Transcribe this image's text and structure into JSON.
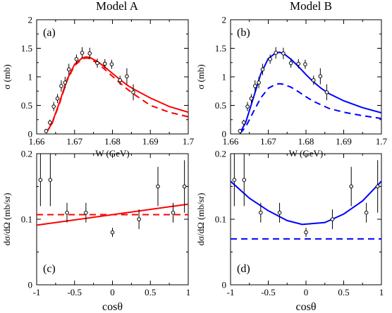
{
  "figure": {
    "column_titles": [
      "Model A",
      "Model B"
    ]
  },
  "chart_data": [
    {
      "type": "line",
      "panel": "(a)",
      "xlabel": "W (GeV)",
      "ylabel": "σ (mb)",
      "xlim": [
        1.66,
        1.7
      ],
      "ylim": [
        0,
        2
      ],
      "xticks": [
        1.66,
        1.67,
        1.68,
        1.69,
        1.7
      ],
      "xtick_labels": [
        "1.66",
        "1.67",
        "1.68",
        "1.69",
        "1.7"
      ],
      "yticks": [
        0,
        0.5,
        1,
        1.5,
        2
      ],
      "ytick_labels": [
        "0",
        "0.5",
        "1",
        "1.5",
        "2"
      ],
      "color": "#ff0000",
      "points": [
        {
          "x": 1.6625,
          "y": 0.05,
          "err": 0.04
        },
        {
          "x": 1.6635,
          "y": 0.2,
          "err": 0.05
        },
        {
          "x": 1.6645,
          "y": 0.48,
          "err": 0.08
        },
        {
          "x": 1.6655,
          "y": 0.62,
          "err": 0.08
        },
        {
          "x": 1.6665,
          "y": 0.84,
          "err": 0.1
        },
        {
          "x": 1.6675,
          "y": 0.9,
          "err": 0.1
        },
        {
          "x": 1.6685,
          "y": 1.13,
          "err": 0.1
        },
        {
          "x": 1.6705,
          "y": 1.31,
          "err": 0.08
        },
        {
          "x": 1.672,
          "y": 1.42,
          "err": 0.1
        },
        {
          "x": 1.674,
          "y": 1.41,
          "err": 0.1
        },
        {
          "x": 1.676,
          "y": 1.24,
          "err": 0.08
        },
        {
          "x": 1.678,
          "y": 1.23,
          "err": 0.08
        },
        {
          "x": 1.6798,
          "y": 1.22,
          "err": 0.08
        },
        {
          "x": 1.682,
          "y": 0.94,
          "err": 0.08
        },
        {
          "x": 1.6838,
          "y": 1.01,
          "err": 0.14
        },
        {
          "x": 1.6855,
          "y": 0.73,
          "err": 0.14
        }
      ],
      "series": [
        {
          "style": "solid",
          "x": [
            1.6625,
            1.664,
            1.666,
            1.668,
            1.67,
            1.672,
            1.673,
            1.674,
            1.676,
            1.678,
            1.68,
            1.682,
            1.684,
            1.686,
            1.69,
            1.695,
            1.7
          ],
          "y": [
            0.02,
            0.18,
            0.55,
            0.95,
            1.22,
            1.33,
            1.35,
            1.34,
            1.27,
            1.17,
            1.06,
            0.95,
            0.85,
            0.77,
            0.63,
            0.48,
            0.38
          ]
        },
        {
          "style": "dashed",
          "x": [
            1.6625,
            1.664,
            1.666,
            1.668,
            1.67,
            1.672,
            1.673,
            1.674,
            1.676,
            1.678,
            1.68,
            1.682,
            1.684,
            1.686,
            1.69,
            1.695,
            1.7
          ],
          "y": [
            0.02,
            0.17,
            0.53,
            0.93,
            1.2,
            1.31,
            1.33,
            1.32,
            1.24,
            1.13,
            1.01,
            0.89,
            0.78,
            0.68,
            0.5,
            0.38,
            0.3
          ]
        }
      ]
    },
    {
      "type": "line",
      "panel": "(b)",
      "xlabel": "W (GeV)",
      "ylabel": "σ (mb)",
      "xlim": [
        1.66,
        1.7
      ],
      "ylim": [
        0,
        2
      ],
      "xticks": [
        1.66,
        1.67,
        1.68,
        1.69,
        1.7
      ],
      "xtick_labels": [
        "1.66",
        "1.67",
        "1.68",
        "1.69",
        "1.7"
      ],
      "yticks": [
        0,
        0.5,
        1,
        1.5,
        2
      ],
      "ytick_labels": [
        "0",
        "0.5",
        "1",
        "1.5",
        "2"
      ],
      "color": "#0000ff",
      "points": [
        {
          "x": 1.6625,
          "y": 0.05,
          "err": 0.04
        },
        {
          "x": 1.6635,
          "y": 0.2,
          "err": 0.05
        },
        {
          "x": 1.6645,
          "y": 0.48,
          "err": 0.08
        },
        {
          "x": 1.6655,
          "y": 0.62,
          "err": 0.08
        },
        {
          "x": 1.6665,
          "y": 0.84,
          "err": 0.1
        },
        {
          "x": 1.6675,
          "y": 0.9,
          "err": 0.1
        },
        {
          "x": 1.6685,
          "y": 1.13,
          "err": 0.1
        },
        {
          "x": 1.6705,
          "y": 1.31,
          "err": 0.08
        },
        {
          "x": 1.672,
          "y": 1.42,
          "err": 0.1
        },
        {
          "x": 1.674,
          "y": 1.41,
          "err": 0.1
        },
        {
          "x": 1.676,
          "y": 1.24,
          "err": 0.08
        },
        {
          "x": 1.678,
          "y": 1.23,
          "err": 0.08
        },
        {
          "x": 1.6798,
          "y": 1.22,
          "err": 0.08
        },
        {
          "x": 1.682,
          "y": 0.94,
          "err": 0.08
        },
        {
          "x": 1.6838,
          "y": 1.01,
          "err": 0.14
        },
        {
          "x": 1.6855,
          "y": 0.73,
          "err": 0.14
        }
      ],
      "series": [
        {
          "style": "solid",
          "x": [
            1.6625,
            1.664,
            1.666,
            1.668,
            1.67,
            1.672,
            1.673,
            1.674,
            1.676,
            1.678,
            1.68,
            1.682,
            1.684,
            1.686,
            1.69,
            1.695,
            1.7
          ],
          "y": [
            0.02,
            0.2,
            0.62,
            1.05,
            1.32,
            1.42,
            1.43,
            1.41,
            1.31,
            1.18,
            1.04,
            0.91,
            0.8,
            0.71,
            0.58,
            0.46,
            0.37
          ]
        },
        {
          "style": "dashed",
          "x": [
            1.6625,
            1.664,
            1.666,
            1.668,
            1.67,
            1.672,
            1.673,
            1.674,
            1.676,
            1.678,
            1.68,
            1.682,
            1.684,
            1.686,
            1.69,
            1.695,
            1.7
          ],
          "y": [
            0.01,
            0.12,
            0.38,
            0.63,
            0.8,
            0.87,
            0.88,
            0.87,
            0.82,
            0.74,
            0.65,
            0.57,
            0.51,
            0.45,
            0.38,
            0.32,
            0.27
          ]
        }
      ]
    },
    {
      "type": "line",
      "panel": "(c)",
      "xlabel": "cosθ",
      "ylabel": "dσ/dΩ (mb/sr)",
      "xlim": [
        -1,
        1
      ],
      "ylim": [
        0,
        0.2
      ],
      "xticks": [
        -1,
        -0.5,
        0,
        0.5,
        1
      ],
      "xtick_labels": [
        "-1",
        "-0.5",
        "0",
        "0.5",
        "1"
      ],
      "yticks": [
        0,
        0.1,
        0.2
      ],
      "ytick_labels": [
        "0",
        "0.1",
        "0.2"
      ],
      "color": "#ff0000",
      "points": [
        {
          "x": -0.95,
          "y": 0.16,
          "err": 0.04
        },
        {
          "x": -0.82,
          "y": 0.16,
          "err": 0.04
        },
        {
          "x": -0.6,
          "y": 0.11,
          "err": 0.015
        },
        {
          "x": -0.35,
          "y": 0.11,
          "err": 0.015
        },
        {
          "x": 0.0,
          "y": 0.08,
          "err": 0.007
        },
        {
          "x": 0.35,
          "y": 0.1,
          "err": 0.015
        },
        {
          "x": 0.6,
          "y": 0.15,
          "err": 0.03
        },
        {
          "x": 0.8,
          "y": 0.11,
          "err": 0.015
        },
        {
          "x": 0.95,
          "y": 0.15,
          "err": 0.04
        }
      ],
      "series": [
        {
          "style": "solid",
          "x": [
            -1,
            1
          ],
          "y": [
            0.091,
            0.123
          ]
        },
        {
          "style": "dashed",
          "x": [
            -1,
            1
          ],
          "y": [
            0.107,
            0.107
          ]
        }
      ]
    },
    {
      "type": "line",
      "panel": "(d)",
      "xlabel": "cosθ",
      "ylabel": "dσ/dΩ (mb/sr)",
      "xlim": [
        -1,
        1
      ],
      "ylim": [
        0,
        0.2
      ],
      "xticks": [
        -1,
        -0.5,
        0,
        0.5,
        1
      ],
      "xtick_labels": [
        "-1",
        "-0.5",
        "0",
        "0.5",
        "1"
      ],
      "yticks": [
        0,
        0.1,
        0.2
      ],
      "ytick_labels": [
        "0",
        "0.1",
        "0.2"
      ],
      "color": "#0000ff",
      "points": [
        {
          "x": -0.95,
          "y": 0.16,
          "err": 0.04
        },
        {
          "x": -0.82,
          "y": 0.16,
          "err": 0.04
        },
        {
          "x": -0.6,
          "y": 0.11,
          "err": 0.015
        },
        {
          "x": -0.35,
          "y": 0.11,
          "err": 0.015
        },
        {
          "x": 0.0,
          "y": 0.08,
          "err": 0.007
        },
        {
          "x": 0.35,
          "y": 0.1,
          "err": 0.015
        },
        {
          "x": 0.6,
          "y": 0.15,
          "err": 0.03
        },
        {
          "x": 0.8,
          "y": 0.11,
          "err": 0.015
        },
        {
          "x": 0.95,
          "y": 0.15,
          "err": 0.04
        }
      ],
      "series": [
        {
          "style": "solid",
          "x": [
            -1,
            -0.75,
            -0.5,
            -0.25,
            -0.05,
            0.25,
            0.5,
            0.75,
            1
          ],
          "y": [
            0.158,
            0.132,
            0.113,
            0.098,
            0.092,
            0.095,
            0.108,
            0.128,
            0.158
          ]
        },
        {
          "style": "dashed",
          "x": [
            -1,
            1
          ],
          "y": [
            0.07,
            0.07
          ]
        }
      ]
    }
  ]
}
